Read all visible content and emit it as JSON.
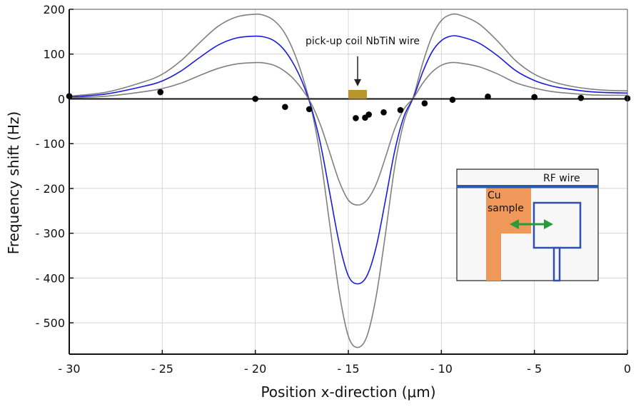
{
  "chart_data": {
    "type": "line",
    "xlabel": "Position x-direction (μm)",
    "ylabel": "Frequency shift (Hz)",
    "xlim": [
      -30,
      0
    ],
    "ylim": [
      -570,
      200
    ],
    "grid": true,
    "x_ticks": [
      -30,
      -25,
      -20,
      -15,
      -10,
      -5,
      0
    ],
    "x_tick_labels": [
      "- 30",
      "- 25",
      "- 20",
      "- 15",
      "- 10",
      "- 5",
      "0"
    ],
    "y_ticks": [
      200,
      100,
      0,
      -100,
      -200,
      -300,
      -400,
      -500
    ],
    "y_tick_labels": [
      "200",
      "100",
      "0",
      "- 100",
      "- 200",
      "- 300",
      "- 400",
      "- 500"
    ],
    "series": [
      {
        "kind": "line",
        "color": "#808080",
        "points": [
          [
            -30,
            6
          ],
          [
            -28,
            15
          ],
          [
            -26,
            38
          ],
          [
            -25,
            55
          ],
          [
            -24,
            85
          ],
          [
            -23,
            125
          ],
          [
            -22,
            162
          ],
          [
            -21,
            183
          ],
          [
            -20,
            189
          ],
          [
            -19.5,
            186
          ],
          [
            -19,
            175
          ],
          [
            -18.5,
            152
          ],
          [
            -18,
            112
          ],
          [
            -17.5,
            55
          ],
          [
            -17,
            -20
          ],
          [
            -16.5,
            -130
          ],
          [
            -16,
            -280
          ],
          [
            -15.5,
            -430
          ],
          [
            -15,
            -530
          ],
          [
            -14.5,
            -555
          ],
          [
            -14,
            -530
          ],
          [
            -13.5,
            -440
          ],
          [
            -13,
            -300
          ],
          [
            -12.5,
            -150
          ],
          [
            -12,
            -50
          ],
          [
            -11.5,
            5
          ],
          [
            -11,
            80
          ],
          [
            -10.5,
            140
          ],
          [
            -10,
            175
          ],
          [
            -9.5,
            188
          ],
          [
            -9,
            187
          ],
          [
            -8,
            168
          ],
          [
            -7,
            130
          ],
          [
            -6,
            85
          ],
          [
            -5,
            55
          ],
          [
            -4,
            38
          ],
          [
            -3,
            28
          ],
          [
            -2,
            22
          ],
          [
            -1,
            19
          ],
          [
            0,
            18
          ]
        ]
      },
      {
        "kind": "line",
        "color": "#1a1adc",
        "points": [
          [
            -30,
            4
          ],
          [
            -28,
            11
          ],
          [
            -26,
            28
          ],
          [
            -25,
            40
          ],
          [
            -24,
            62
          ],
          [
            -23,
            92
          ],
          [
            -22,
            120
          ],
          [
            -21,
            136
          ],
          [
            -20,
            140
          ],
          [
            -19.5,
            138
          ],
          [
            -19,
            130
          ],
          [
            -18.5,
            112
          ],
          [
            -18,
            82
          ],
          [
            -17.5,
            40
          ],
          [
            -17,
            -18
          ],
          [
            -16.5,
            -100
          ],
          [
            -16,
            -210
          ],
          [
            -15.5,
            -320
          ],
          [
            -15,
            -395
          ],
          [
            -14.5,
            -413
          ],
          [
            -14,
            -395
          ],
          [
            -13.5,
            -330
          ],
          [
            -13,
            -225
          ],
          [
            -12.5,
            -115
          ],
          [
            -12,
            -38
          ],
          [
            -11.5,
            3
          ],
          [
            -11,
            60
          ],
          [
            -10.5,
            105
          ],
          [
            -10,
            130
          ],
          [
            -9.5,
            140
          ],
          [
            -9,
            139
          ],
          [
            -8,
            125
          ],
          [
            -7,
            97
          ],
          [
            -6,
            63
          ],
          [
            -5,
            41
          ],
          [
            -4,
            28
          ],
          [
            -3,
            21
          ],
          [
            -2,
            16
          ],
          [
            -1,
            14
          ],
          [
            0,
            13
          ]
        ]
      },
      {
        "kind": "line",
        "color": "#808080",
        "points": [
          [
            -30,
            2
          ],
          [
            -28,
            6
          ],
          [
            -26,
            16
          ],
          [
            -25,
            23
          ],
          [
            -24,
            35
          ],
          [
            -23,
            52
          ],
          [
            -22,
            68
          ],
          [
            -21,
            78
          ],
          [
            -20,
            81
          ],
          [
            -19.5,
            80
          ],
          [
            -19,
            75
          ],
          [
            -18.5,
            64
          ],
          [
            -18,
            47
          ],
          [
            -17.5,
            22
          ],
          [
            -17,
            -10
          ],
          [
            -16.5,
            -58
          ],
          [
            -16,
            -120
          ],
          [
            -15.5,
            -183
          ],
          [
            -15,
            -226
          ],
          [
            -14.5,
            -237
          ],
          [
            -14,
            -226
          ],
          [
            -13.5,
            -190
          ],
          [
            -13,
            -130
          ],
          [
            -12.5,
            -66
          ],
          [
            -12,
            -22
          ],
          [
            -11.5,
            2
          ],
          [
            -11,
            35
          ],
          [
            -10.5,
            60
          ],
          [
            -10,
            75
          ],
          [
            -9.5,
            81
          ],
          [
            -9,
            80
          ],
          [
            -8,
            72
          ],
          [
            -7,
            56
          ],
          [
            -6,
            36
          ],
          [
            -5,
            24
          ],
          [
            -4,
            16
          ],
          [
            -3,
            12
          ],
          [
            -2,
            9
          ],
          [
            -1,
            8
          ],
          [
            0,
            8
          ]
        ]
      }
    ],
    "scatter": {
      "color": "#000000",
      "points": [
        [
          -30,
          6
        ],
        [
          -25.1,
          15
        ],
        [
          -20,
          0
        ],
        [
          -18.4,
          -18
        ],
        [
          -17.1,
          -23
        ],
        [
          -14.6,
          -43
        ],
        [
          -14.1,
          -42
        ],
        [
          -13.9,
          -35
        ],
        [
          -13.1,
          -30
        ],
        [
          -12.2,
          -25
        ],
        [
          -10.9,
          -10
        ],
        [
          -9.4,
          -2
        ],
        [
          -7.5,
          5
        ],
        [
          -5,
          4
        ],
        [
          -2.5,
          2
        ],
        [
          0,
          1
        ]
      ]
    },
    "coil_marker": {
      "x_start": -15.0,
      "x_end": -14.0,
      "y_low": 0,
      "y_high": 20,
      "color": "#b8962e"
    },
    "annotation": {
      "text": "pick-up coil NbTiN wire",
      "x": -14.5,
      "arrow_from_y": 95,
      "arrow_to_y": 28
    },
    "inset": {
      "rf_label": "RF  wire",
      "cu_label_line1": "Cu",
      "cu_label_line2": "sample",
      "rf_color": "#2a5ab0",
      "cu_color": "#f0975a",
      "coil_color": "#3050b0",
      "arrow_color": "#2a9a3a"
    }
  }
}
